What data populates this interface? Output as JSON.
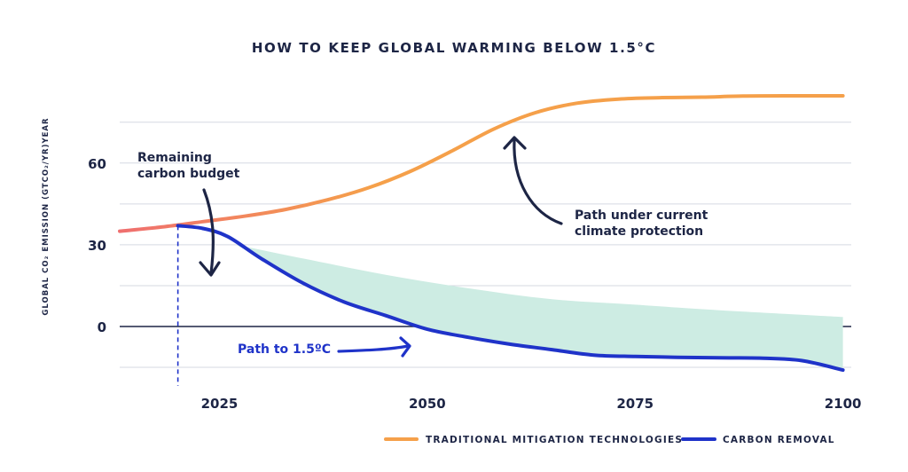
{
  "chart_data": {
    "type": "line",
    "title": "HOW TO KEEP GLOBAL WARMING BELOW 1.5°C",
    "ylabel": "GLOBAL CO₂ EMISSION (GTCO₂/YR)YEAR",
    "xlabel": "",
    "x_ticks": [
      2025,
      2050,
      2075,
      2100
    ],
    "y_ticks": [
      0,
      30,
      60
    ],
    "xlim": [
      2013,
      2101
    ],
    "ylim": [
      -18,
      90
    ],
    "grid": "horizontal",
    "legend_position": "bottom-right",
    "series": [
      {
        "name": "TRADITIONAL MITIGATION TECHNOLOGIES",
        "color": "#f5a04a",
        "color_start": "#ef6f6f",
        "x": [
          2013,
          2018,
          2023,
          2028,
          2033,
          2038,
          2043,
          2048,
          2053,
          2058,
          2063,
          2068,
          2073,
          2078,
          2083,
          2088,
          2093,
          2100
        ],
        "y": [
          35,
          36.5,
          38.5,
          40.5,
          43,
          46.5,
          51,
          57,
          64.5,
          72.5,
          78.5,
          82,
          83.5,
          84,
          84.2,
          84.6,
          84.7,
          84.7
        ]
      },
      {
        "name": "CARBON REMOVAL",
        "color": "#1f33c9",
        "x": [
          2020,
          2023,
          2026,
          2030,
          2035,
          2040,
          2045,
          2050,
          2055,
          2060,
          2065,
          2070,
          2075,
          2080,
          2085,
          2090,
          2095,
          2100
        ],
        "y": [
          37,
          36,
          33,
          25,
          16,
          9,
          4,
          -1,
          -4,
          -6.5,
          -8.5,
          -10.5,
          -11,
          -11.3,
          -11.5,
          -11.6,
          -12.5,
          -16
        ]
      },
      {
        "name": "gap",
        "color": "#cdece3",
        "x": [
          2027,
          2035,
          2045,
          2055,
          2065,
          2075,
          2085,
          2100
        ],
        "y": [
          30,
          25,
          19,
          14,
          10,
          8,
          6,
          3.5
        ]
      }
    ],
    "markers": [
      {
        "label": "",
        "x": 2020,
        "style": "dashed",
        "color": "#1f33c9"
      }
    ],
    "annotations": {
      "remaining_line1": "Remaining",
      "remaining_line2": "carbon budget",
      "current_line1": "Path under current",
      "current_line2": "climate protection",
      "path15": "Path to 1.5ºC"
    }
  }
}
